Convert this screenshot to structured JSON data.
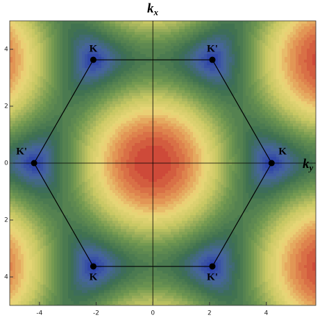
{
  "chart_data": {
    "type": "contour",
    "xlabel": {
      "text": "k",
      "subscript": "y"
    },
    "ylabel": {
      "text": "k",
      "subscript": "x"
    },
    "xlim": [
      -5.05,
      5.75
    ],
    "ylim": [
      -5,
      5
    ],
    "xticks": [
      -4,
      -2,
      0,
      2,
      4
    ],
    "yticks": [
      {
        "value": -4,
        "label": "4"
      },
      {
        "value": -2,
        "label": "2"
      },
      0,
      2,
      4
    ],
    "line_color": "#000000",
    "points": [
      {
        "label": "K",
        "x": -2.1,
        "y": 3.63,
        "label_pos": "top"
      },
      {
        "label": "K'",
        "x": 2.1,
        "y": 3.63,
        "label_pos": "top"
      },
      {
        "label": "K",
        "x": 4.19,
        "y": 0,
        "label_pos": "right"
      },
      {
        "label": "K'",
        "x": 2.1,
        "y": -3.63,
        "label_pos": "bottom"
      },
      {
        "label": "K",
        "x": -2.1,
        "y": -3.63,
        "label_pos": "bottom"
      },
      {
        "label": "K'",
        "x": -4.19,
        "y": 0,
        "label_pos": "left"
      }
    ]
  }
}
